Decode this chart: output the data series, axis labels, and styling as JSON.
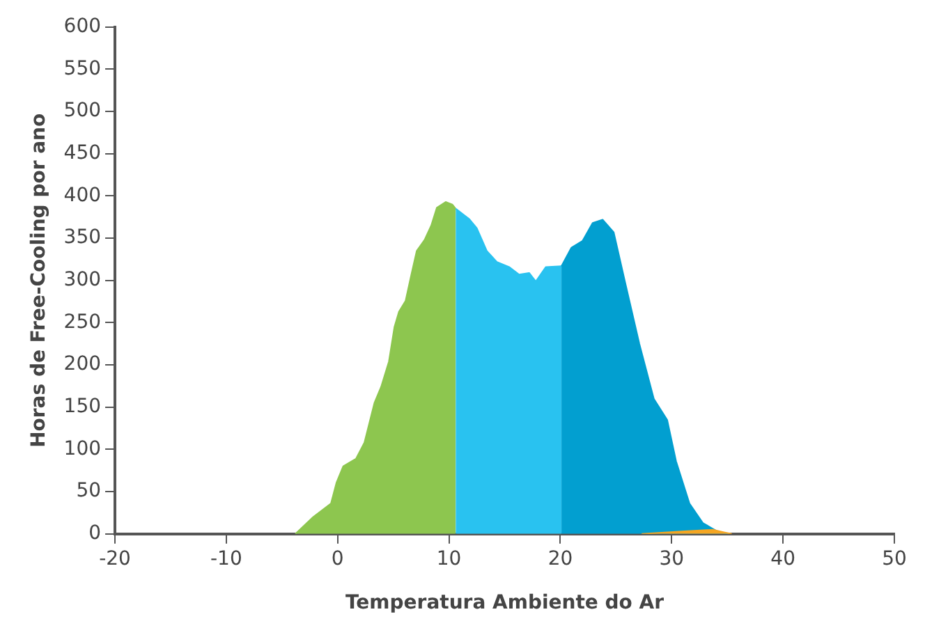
{
  "chart_data": {
    "type": "area",
    "xlabel": "Temperatura Ambiente do Ar",
    "ylabel": "Horas de Free-Cooling por ano",
    "xlim": [
      -20,
      50
    ],
    "xticks": [
      -20,
      -10,
      0,
      10,
      20,
      30,
      40,
      50
    ],
    "ylim": [
      0,
      600
    ],
    "yticks": [
      0,
      50,
      100,
      150,
      200,
      250,
      300,
      350,
      400,
      450,
      500,
      550,
      600
    ],
    "grid": false,
    "legend": false,
    "marker": "none",
    "line_style": "solid",
    "series": [
      {
        "color": "#8dc64f",
        "x": [
          -3.8,
          -2.2,
          -0.6,
          -0.1,
          0.5,
          1.65,
          2.4,
          3.3,
          3.9,
          4.6,
          5.1,
          5.5,
          6.1,
          6.6,
          7.1,
          7.8,
          8.4,
          8.9,
          9.7,
          10.3,
          10.6
        ],
        "values": [
          0,
          20,
          36,
          61,
          80,
          89,
          108,
          155,
          174,
          204,
          245,
          263,
          276,
          306,
          335,
          348,
          365,
          386,
          393,
          390,
          385
        ]
      },
      {
        "color": "#29c2f0",
        "x": [
          10.6,
          11.8,
          12.5,
          13.4,
          14.3,
          15.4,
          16.3,
          17.2,
          17.8,
          18.7,
          20.1
        ],
        "values": [
          385,
          373,
          362,
          335,
          322,
          316,
          307,
          309,
          299,
          316,
          317
        ]
      },
      {
        "color": "#029fd0",
        "x": [
          20.1,
          21,
          22,
          22.9,
          23.8,
          24.8,
          25.8,
          27.1,
          28.4,
          29.6,
          30.4,
          31.6,
          32.8,
          34.1,
          35.1
        ],
        "values": [
          317,
          339,
          347,
          368,
          372,
          357,
          299,
          225,
          160,
          135,
          86,
          36,
          13,
          3,
          0
        ]
      },
      {
        "color": "#f5a623",
        "x": [
          27.3,
          30.9,
          33.7,
          34.7,
          35.4
        ],
        "values": [
          0,
          3,
          5,
          2,
          0
        ]
      }
    ]
  }
}
